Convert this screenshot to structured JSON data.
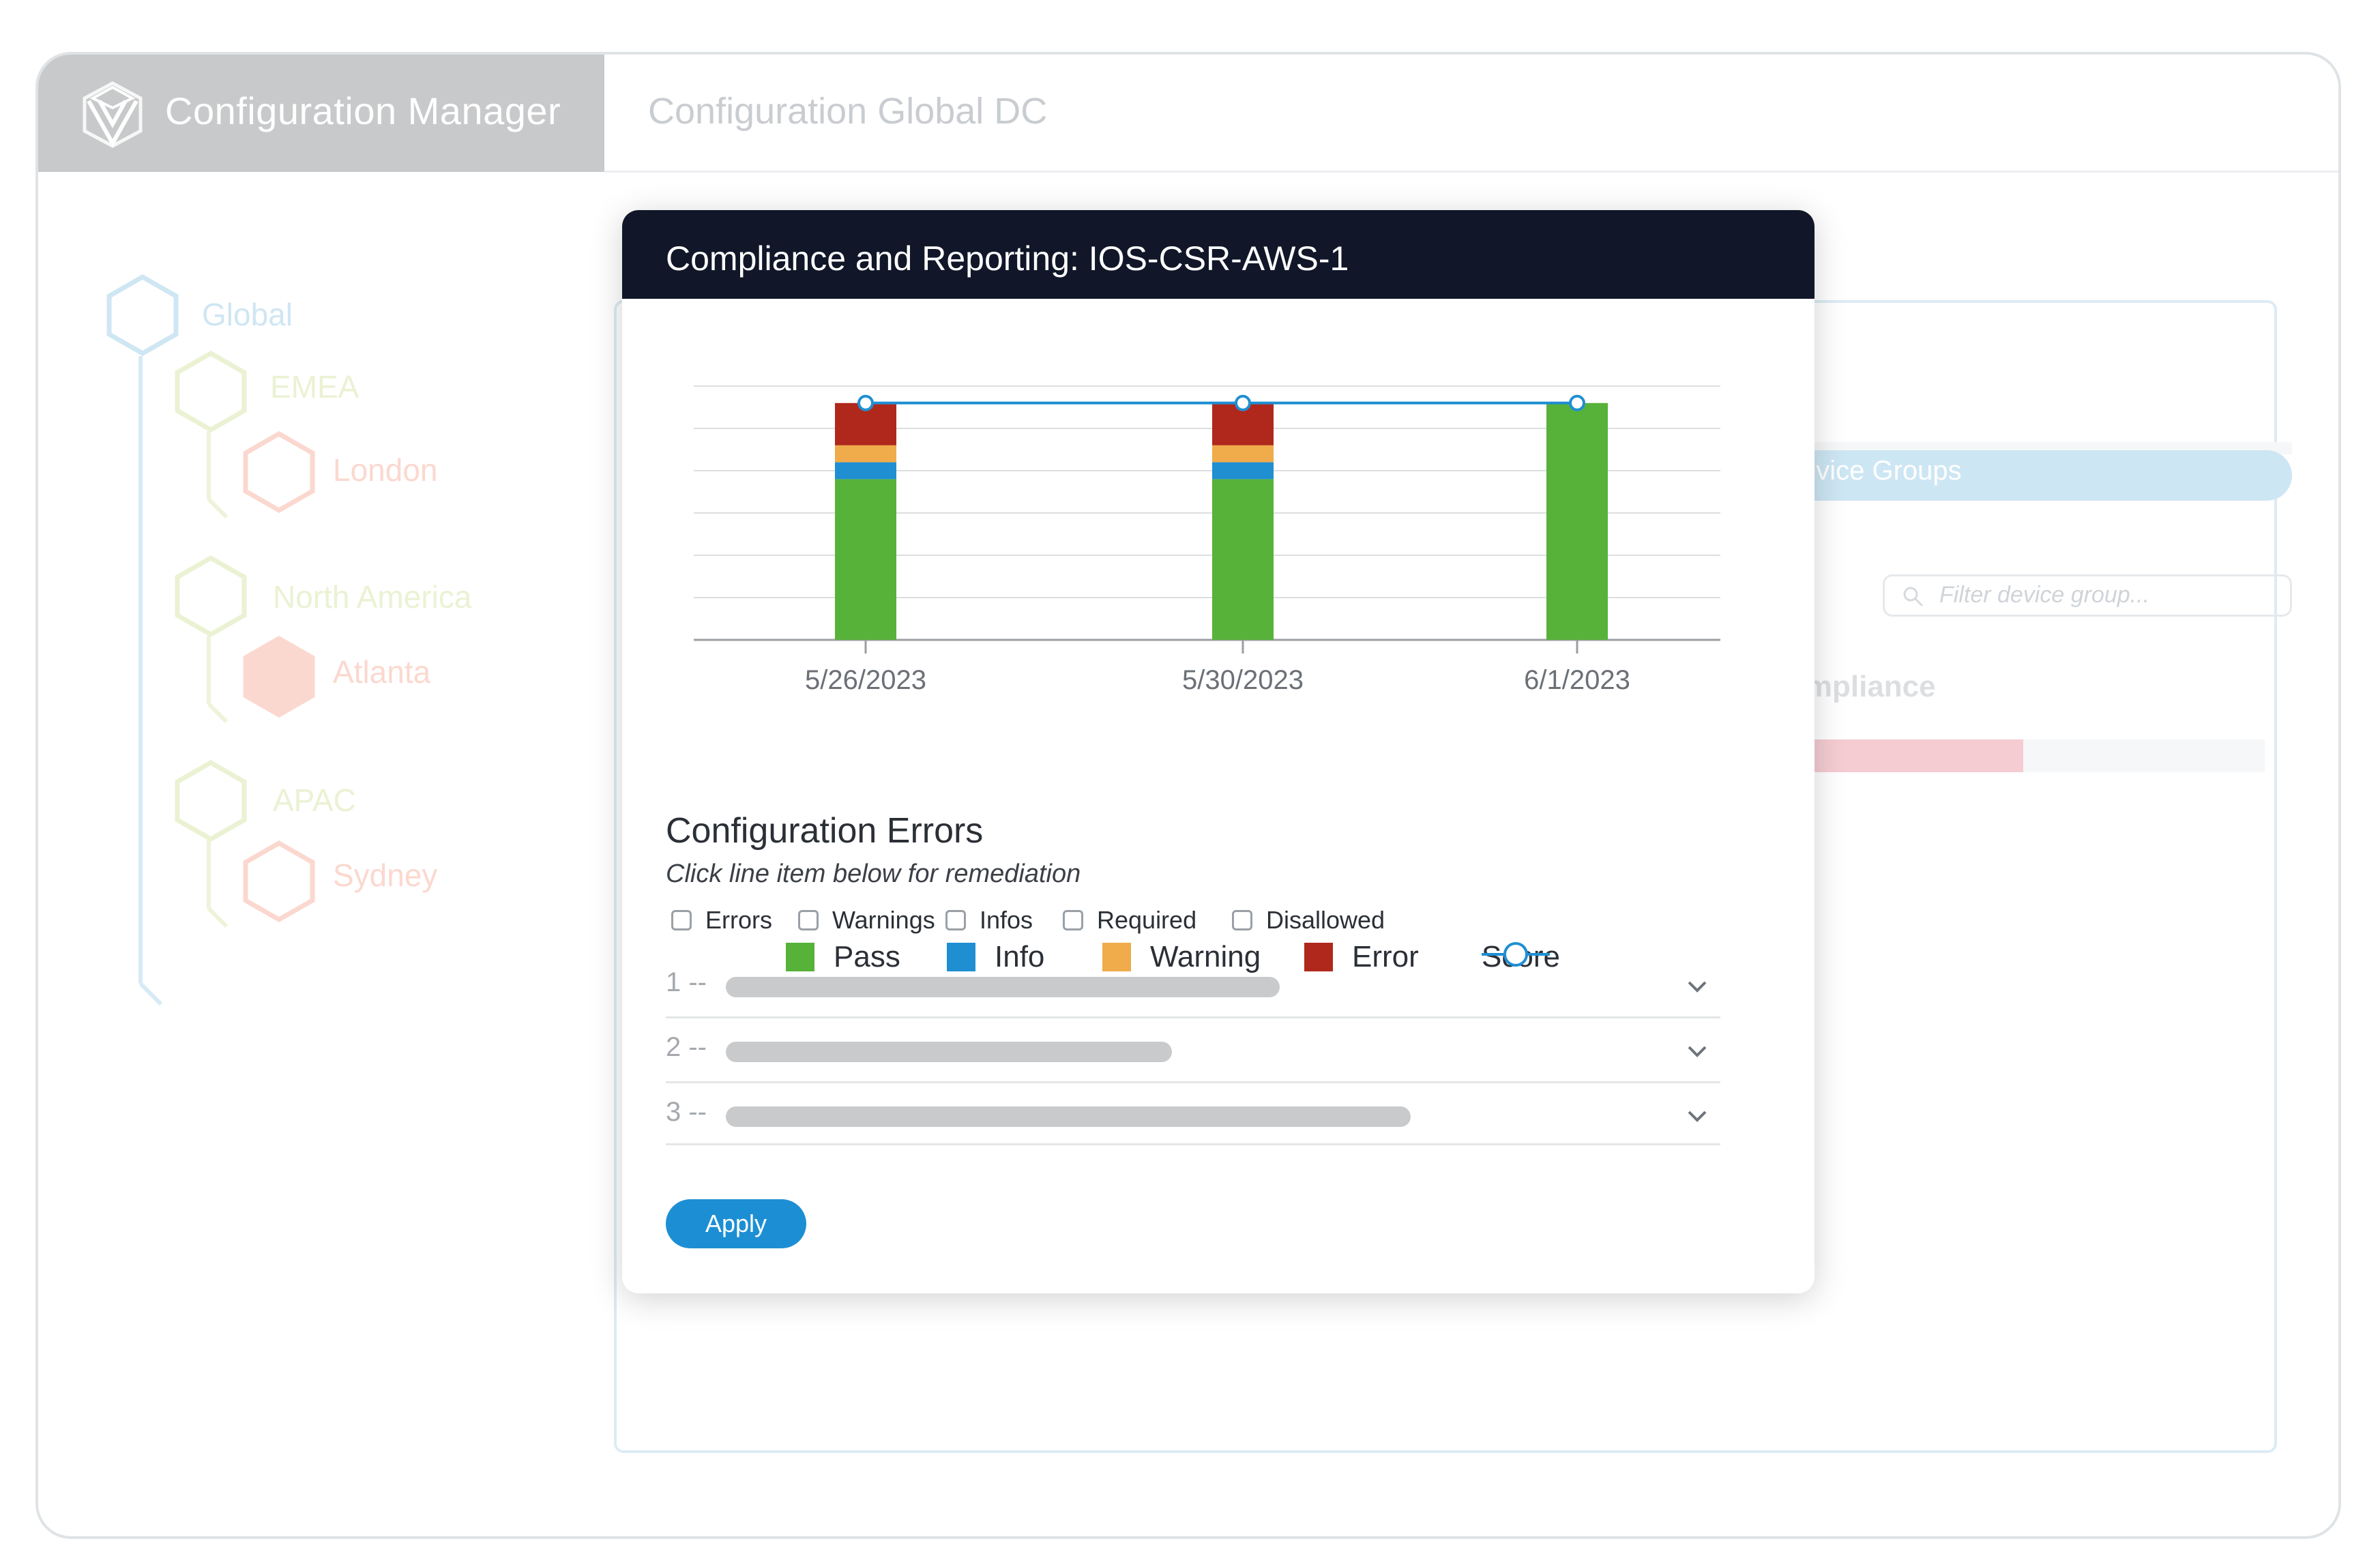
{
  "app": {
    "title": "Configuration Manager",
    "page_title": "Configuration Global DC"
  },
  "tree": {
    "items": [
      {
        "label": "Global",
        "color": "#cfe6f3"
      },
      {
        "label": "EMEA",
        "color": "#eaf2d3"
      },
      {
        "label": "London",
        "color": "#fbd8cf"
      },
      {
        "label": "North America",
        "color": "#eaf2d3"
      },
      {
        "label": "Atlanta",
        "color": "#fbd8cf"
      },
      {
        "label": "APAC",
        "color": "#eaf2d3"
      },
      {
        "label": "Sydney",
        "color": "#fbd8cf"
      }
    ]
  },
  "background": {
    "tab_label": "evice Groups",
    "filter_placeholder": "Filter device group...",
    "compliance_label": "ompliance",
    "compliance_fill": 0.48
  },
  "modal": {
    "title": "Compliance and Reporting: IOS-CSR-AWS-1",
    "section_title": "Configuration Errors",
    "section_hint": "Click line item below for remediation",
    "filters": [
      "Errors",
      "Warnings",
      "Infos",
      "Required",
      "Disallowed"
    ],
    "errors": [
      {
        "index": "1 --"
      },
      {
        "index": "2 --"
      },
      {
        "index": "3 --"
      }
    ],
    "apply_label": "Apply"
  },
  "chart_data": {
    "type": "bar",
    "stacked": true,
    "categories": [
      "5/26/2023",
      "5/30/2023",
      "6/1/2023"
    ],
    "series": [
      {
        "name": "Pass",
        "color": "#57b23a",
        "values": [
          19,
          19,
          28
        ]
      },
      {
        "name": "Info",
        "color": "#1f8fd2",
        "values": [
          2,
          2,
          0
        ]
      },
      {
        "name": "Warning",
        "color": "#f0ab4a",
        "values": [
          2,
          2,
          0
        ]
      },
      {
        "name": "Error",
        "color": "#b0281c",
        "values": [
          5,
          5,
          0
        ]
      }
    ],
    "line_series": {
      "name": "Score",
      "color": "#1f8fd2",
      "values": [
        28,
        28,
        28
      ]
    },
    "ylim": [
      0,
      30
    ],
    "grid": true,
    "legend_position": "bottom"
  },
  "colors": {
    "accent": "#1c8fd4",
    "header": "#111729",
    "brand_bar": "#c8c9ca"
  }
}
